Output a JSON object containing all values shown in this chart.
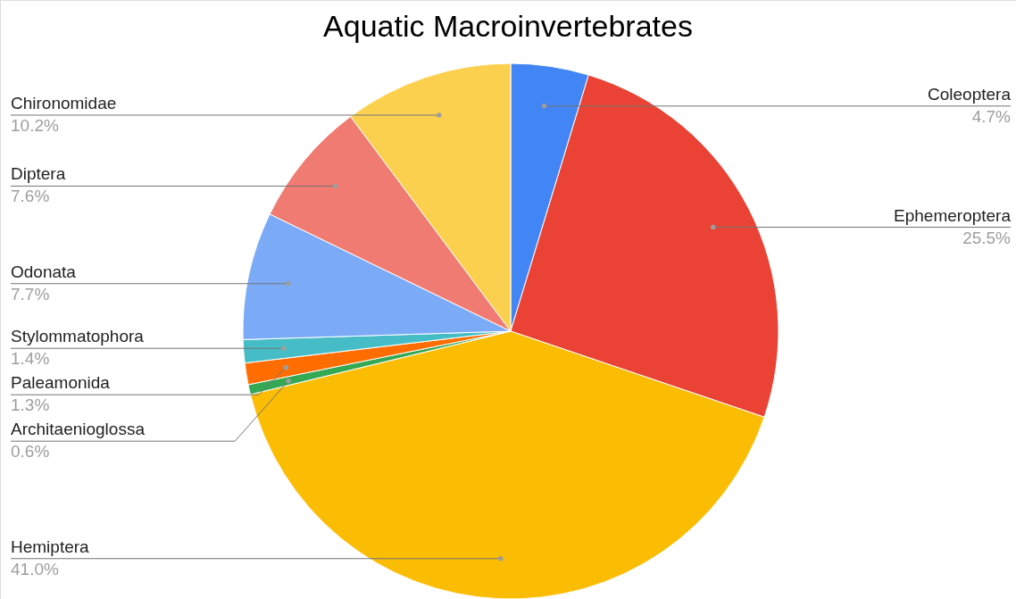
{
  "chart_data": {
    "type": "pie",
    "title": "Aquatic Macroinvertebrates",
    "categories": [
      "Coleoptera",
      "Ephemeroptera",
      "Hemiptera",
      "Architaenioglossa",
      "Paleamonida",
      "Stylommatophora",
      "Odonata",
      "Diptera",
      "Chironomidae"
    ],
    "values": [
      4.7,
      25.5,
      41.0,
      0.6,
      1.3,
      1.4,
      7.7,
      7.6,
      10.2
    ],
    "value_labels": [
      "4.7%",
      "25.5%",
      "41.0%",
      "0.6%",
      "1.3%",
      "1.4%",
      "7.7%",
      "7.6%",
      "10.2%"
    ],
    "colors": [
      "#4285f4",
      "#ea4335",
      "#fbbc04",
      "#34a853",
      "#ff6d01",
      "#46bdc6",
      "#7baaf7",
      "#f07b72",
      "#fcd04f"
    ],
    "legend": false
  }
}
